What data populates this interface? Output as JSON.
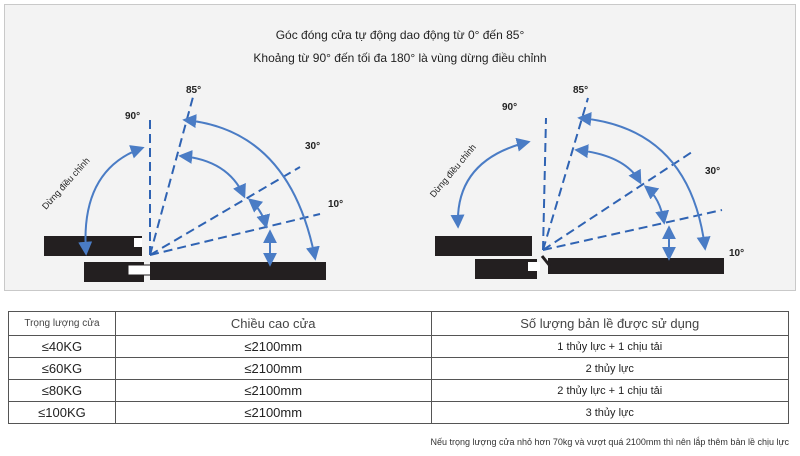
{
  "header": {
    "line1": "Góc đóng cửa tự động dao động từ 0° đến 85°",
    "line2": "Khoảng từ 90° đến tối đa 180° là vùng dừng điều chỉnh"
  },
  "diagram": {
    "angle_labels": {
      "deg90": "90°",
      "deg85": "85°",
      "deg30": "30°",
      "deg10": "10°"
    },
    "stop_zone_label": "Dừng điều chỉnh",
    "colors": {
      "arrow": "#4a7cc5",
      "door": "#231f20",
      "line": "#2f63b3"
    }
  },
  "table": {
    "headers": [
      "Trọng lượng cửa",
      "Chiều cao cửa",
      "Số lượng bản lề được sử dụng"
    ],
    "rows": [
      [
        "≤40KG",
        "≤2100mm",
        "1 thủy lực + 1 chịu tải"
      ],
      [
        "≤60KG",
        "≤2100mm",
        "2 thủy lực"
      ],
      [
        "≤80KG",
        "≤2100mm",
        "2 thủy lực + 1 chịu tải"
      ],
      [
        "≤100KG",
        "≤2100mm",
        "3 thủy lực"
      ]
    ]
  },
  "footnote": "Nếu trọng lượng cửa nhỏ hơn 70kg và vượt quá 2100mm thì nên lắp thêm bản lề chịu lực"
}
